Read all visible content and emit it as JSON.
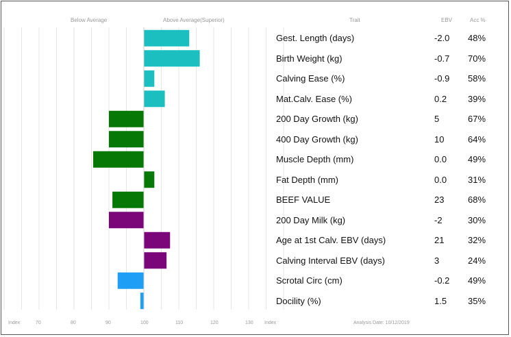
{
  "headers": {
    "below_average": "Below Average",
    "above_average": "Above Average(Superior)",
    "trait": "Trait",
    "ebv": "EBV",
    "acc": "Acc %"
  },
  "footer": {
    "index_left": "Index",
    "index_right": "Index",
    "analysis_date": "Analysis Date: 10/12/2019"
  },
  "colors": {
    "teal": "#1cbfbf",
    "green": "#067806",
    "purple": "#7a067a",
    "blue": "#1e9ef5",
    "grid": "#e6e6e6"
  },
  "chart_data": {
    "type": "bar",
    "orientation": "horizontal",
    "baseline": 100,
    "xlim": [
      50,
      150
    ],
    "x_ticks": [
      "70",
      "80",
      "90",
      "100",
      "110",
      "120",
      "130"
    ],
    "categories": [
      "Gest. Length (days)",
      "Birth Weight (kg)",
      "Calving Ease (%)",
      "Mat.Calv. Ease (%)",
      "200 Day Growth (kg)",
      "400 Day Growth (kg)",
      "Muscle Depth (mm)",
      "Fat Depth (mm)",
      "BEEF VALUE",
      "200 Day Milk (kg)",
      "Age at 1st Calv. EBV (days)",
      "Calving Interval EBV (days)",
      "Scrotal Circ (cm)",
      "Docility (%)"
    ],
    "index_values": [
      113,
      116,
      103,
      106,
      90,
      90,
      85.5,
      103,
      91,
      90,
      107.5,
      106.5,
      92.5,
      99
    ],
    "ebv": [
      "-2.0",
      "-0.7",
      "-0.9",
      "0.2",
      "5",
      "10",
      "0.0",
      "0.0",
      "23",
      "-2",
      "21",
      "3",
      "-0.2",
      "1.5"
    ],
    "acc": [
      "48%",
      "70%",
      "58%",
      "39%",
      "67%",
      "64%",
      "49%",
      "31%",
      "68%",
      "30%",
      "32%",
      "24%",
      "49%",
      "35%"
    ],
    "bar_colors": [
      "teal",
      "teal",
      "teal",
      "teal",
      "green",
      "green",
      "green",
      "green",
      "green",
      "purple",
      "purple",
      "purple",
      "blue",
      "blue"
    ]
  }
}
